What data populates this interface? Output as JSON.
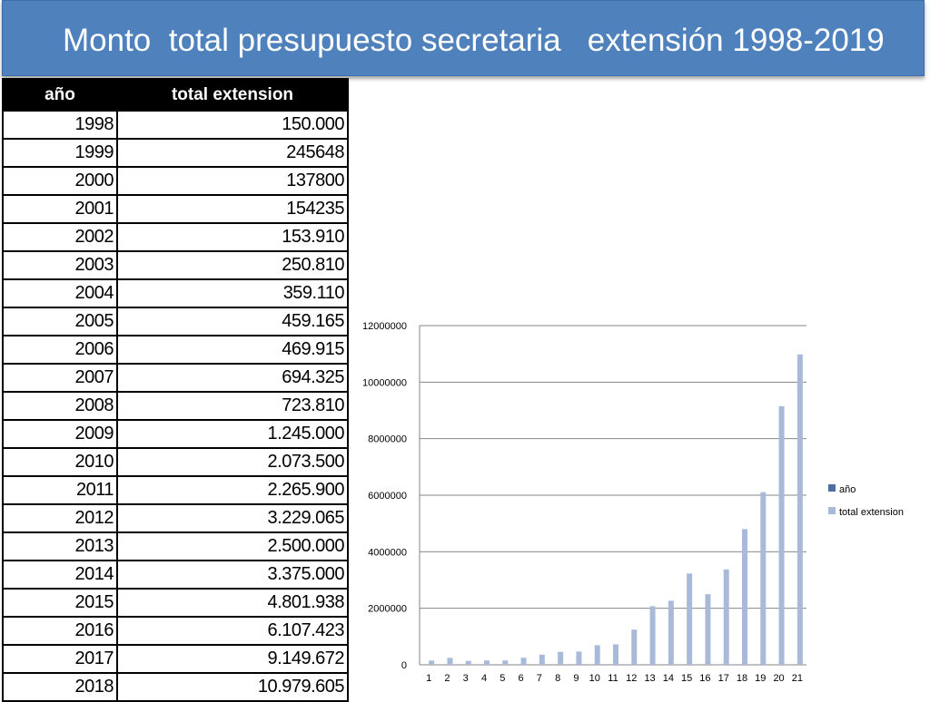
{
  "title": "Monto  total presupuesto secretaria   extensión 1998-2019",
  "table": {
    "headers": [
      "año",
      "total extension"
    ],
    "rows": [
      [
        "1998",
        "150.000"
      ],
      [
        "1999",
        "245648"
      ],
      [
        "2000",
        "137800"
      ],
      [
        "2001",
        "154235"
      ],
      [
        "2002",
        "153.910"
      ],
      [
        "2003",
        "250.810"
      ],
      [
        "2004",
        "359.110"
      ],
      [
        "2005",
        "459.165"
      ],
      [
        "2006",
        "469.915"
      ],
      [
        "2007",
        "694.325"
      ],
      [
        "2008",
        "723.810"
      ],
      [
        "2009",
        "1.245.000"
      ],
      [
        "2010",
        "2.073.500"
      ],
      [
        "2011",
        "2.265.900"
      ],
      [
        "2012",
        "3.229.065"
      ],
      [
        "2013",
        "2.500.000"
      ],
      [
        "2014",
        "3.375.000"
      ],
      [
        "2015",
        "4.801.938"
      ],
      [
        "2016",
        "6.107.423"
      ],
      [
        "2017",
        "9.149.672"
      ],
      [
        "2018",
        "10.979.605"
      ]
    ]
  },
  "colors": {
    "title_bg": "#4f81bd",
    "series_ano": "#4f6fa0",
    "series_total": "#a9bad9"
  },
  "chart_data": {
    "type": "bar",
    "categories": [
      "1",
      "2",
      "3",
      "4",
      "5",
      "6",
      "7",
      "8",
      "9",
      "10",
      "11",
      "12",
      "13",
      "14",
      "15",
      "16",
      "17",
      "18",
      "19",
      "20",
      "21"
    ],
    "series": [
      {
        "name": "año",
        "values": [
          1998,
          1999,
          2000,
          2001,
          2002,
          2003,
          2004,
          2005,
          2006,
          2007,
          2008,
          2009,
          2010,
          2011,
          2012,
          2013,
          2014,
          2015,
          2016,
          2017,
          2018
        ]
      },
      {
        "name": "total extension",
        "values": [
          150000,
          245648,
          137800,
          154235,
          153910,
          250810,
          359110,
          459165,
          469915,
          694325,
          723810,
          1245000,
          2073500,
          2265900,
          3229065,
          2500000,
          3375000,
          4801938,
          6107423,
          9149672,
          10979605
        ]
      }
    ],
    "ylim": [
      0,
      12000000
    ],
    "yticks": [
      "0",
      "2000000",
      "4000000",
      "6000000",
      "8000000",
      "10000000",
      "12000000"
    ],
    "grid": true,
    "legend": "right"
  }
}
